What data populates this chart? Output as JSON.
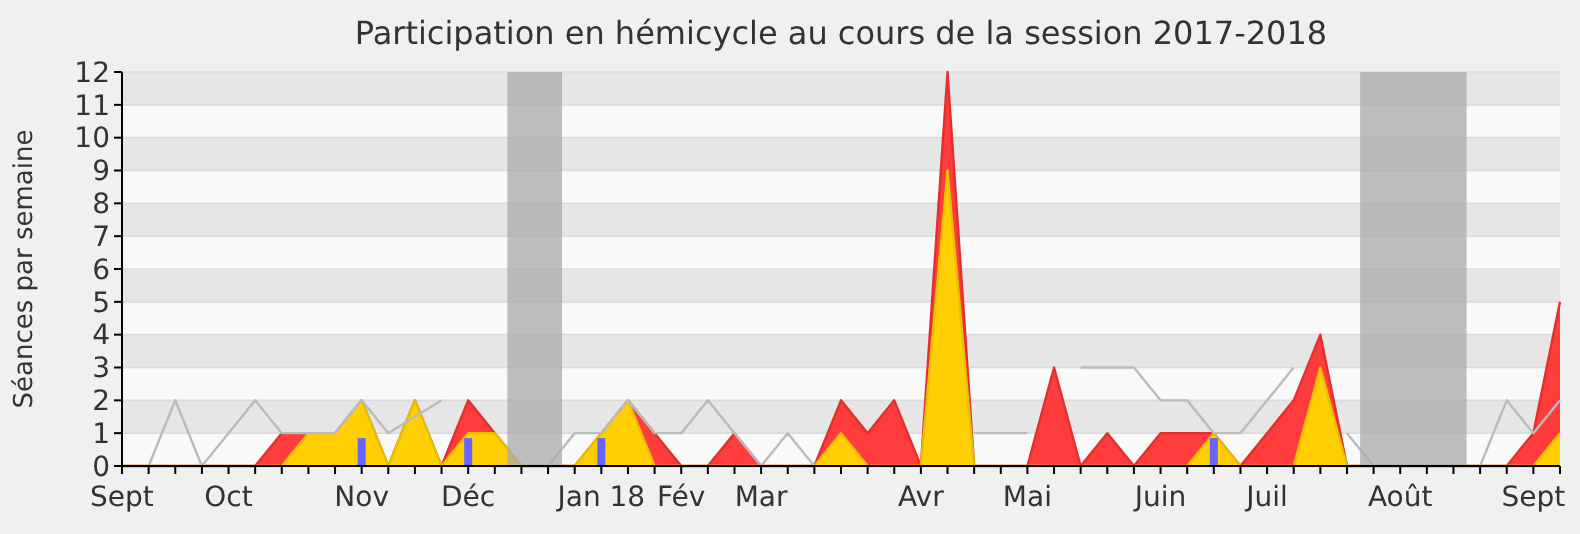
{
  "chart_data": {
    "type": "area",
    "title": "Participation en hémicycle au cours de la session 2017-2018",
    "ylabel": "Séances par semaine",
    "categories": [
      "Sept",
      null,
      null,
      null,
      "Oct",
      null,
      null,
      null,
      null,
      "Nov",
      null,
      null,
      null,
      "Déc",
      null,
      null,
      null,
      null,
      "Jan 18",
      null,
      null,
      "Fév",
      null,
      null,
      "Mar",
      null,
      null,
      null,
      null,
      null,
      "Avr",
      null,
      null,
      null,
      "Mai",
      null,
      null,
      null,
      null,
      "Juin",
      null,
      null,
      null,
      "Juil",
      null,
      null,
      null,
      null,
      "Août",
      null,
      null,
      null,
      null,
      "Sept",
      null
    ],
    "series": [
      {
        "color": "#ff3333",
        "values": [
          0,
          0,
          0,
          0,
          0,
          0,
          1,
          1,
          1,
          2,
          0,
          2,
          0,
          2,
          1,
          0,
          0,
          0,
          1,
          2,
          1,
          0,
          0,
          1,
          0,
          0,
          0,
          2,
          1,
          2,
          0,
          12,
          0,
          0,
          0,
          3,
          0,
          1,
          0,
          1,
          1,
          1,
          0,
          1,
          2,
          4,
          0,
          0,
          0,
          0,
          0,
          0,
          0,
          1,
          5
        ]
      },
      {
        "type": "area",
        "color": "#ffd700",
        "values": [
          0,
          0,
          0,
          0,
          0,
          0,
          0,
          1,
          1,
          2,
          0,
          2,
          0,
          1,
          1,
          0,
          0,
          0,
          1,
          2,
          0,
          0,
          0,
          0,
          0,
          0,
          0,
          1,
          0,
          0,
          0,
          9,
          0,
          0,
          0,
          0,
          0,
          0,
          0,
          0,
          0,
          1,
          0,
          0,
          0,
          3,
          0,
          0,
          0,
          0,
          0,
          0,
          0,
          0,
          1
        ]
      },
      {
        "type": "line",
        "color": "#bbbbbb",
        "values": [
          null,
          0,
          2,
          0,
          1,
          2,
          1,
          1,
          1,
          2,
          1,
          1.5,
          2,
          null,
          0,
          0,
          0,
          1,
          1,
          2,
          1,
          1,
          2,
          1,
          0,
          1,
          0,
          null,
          null,
          null,
          null,
          null,
          1,
          1,
          1,
          null,
          3,
          3,
          3,
          2,
          2,
          1,
          1,
          2,
          3,
          null,
          1,
          0,
          0,
          0,
          0,
          0,
          2,
          1,
          2
        ]
      },
      {
        "type": "bar",
        "color": "#6666ff",
        "values": [
          null,
          null,
          null,
          null,
          null,
          null,
          null,
          null,
          null,
          0.85,
          null,
          null,
          null,
          0.85,
          null,
          null,
          null,
          null,
          0.85,
          null,
          null,
          null,
          null,
          null,
          null,
          null,
          null,
          null,
          null,
          null,
          null,
          null,
          null,
          null,
          null,
          null,
          null,
          null,
          null,
          null,
          null,
          0.85,
          null,
          null,
          null,
          null,
          null,
          null,
          null,
          null,
          null,
          null,
          null,
          null,
          null
        ]
      }
    ],
    "ylim": [
      0,
      12
    ],
    "yticks": [
      0,
      1,
      2,
      3,
      4,
      5,
      6,
      7,
      8,
      9,
      10,
      11,
      12
    ],
    "grid": "y"
  }
}
